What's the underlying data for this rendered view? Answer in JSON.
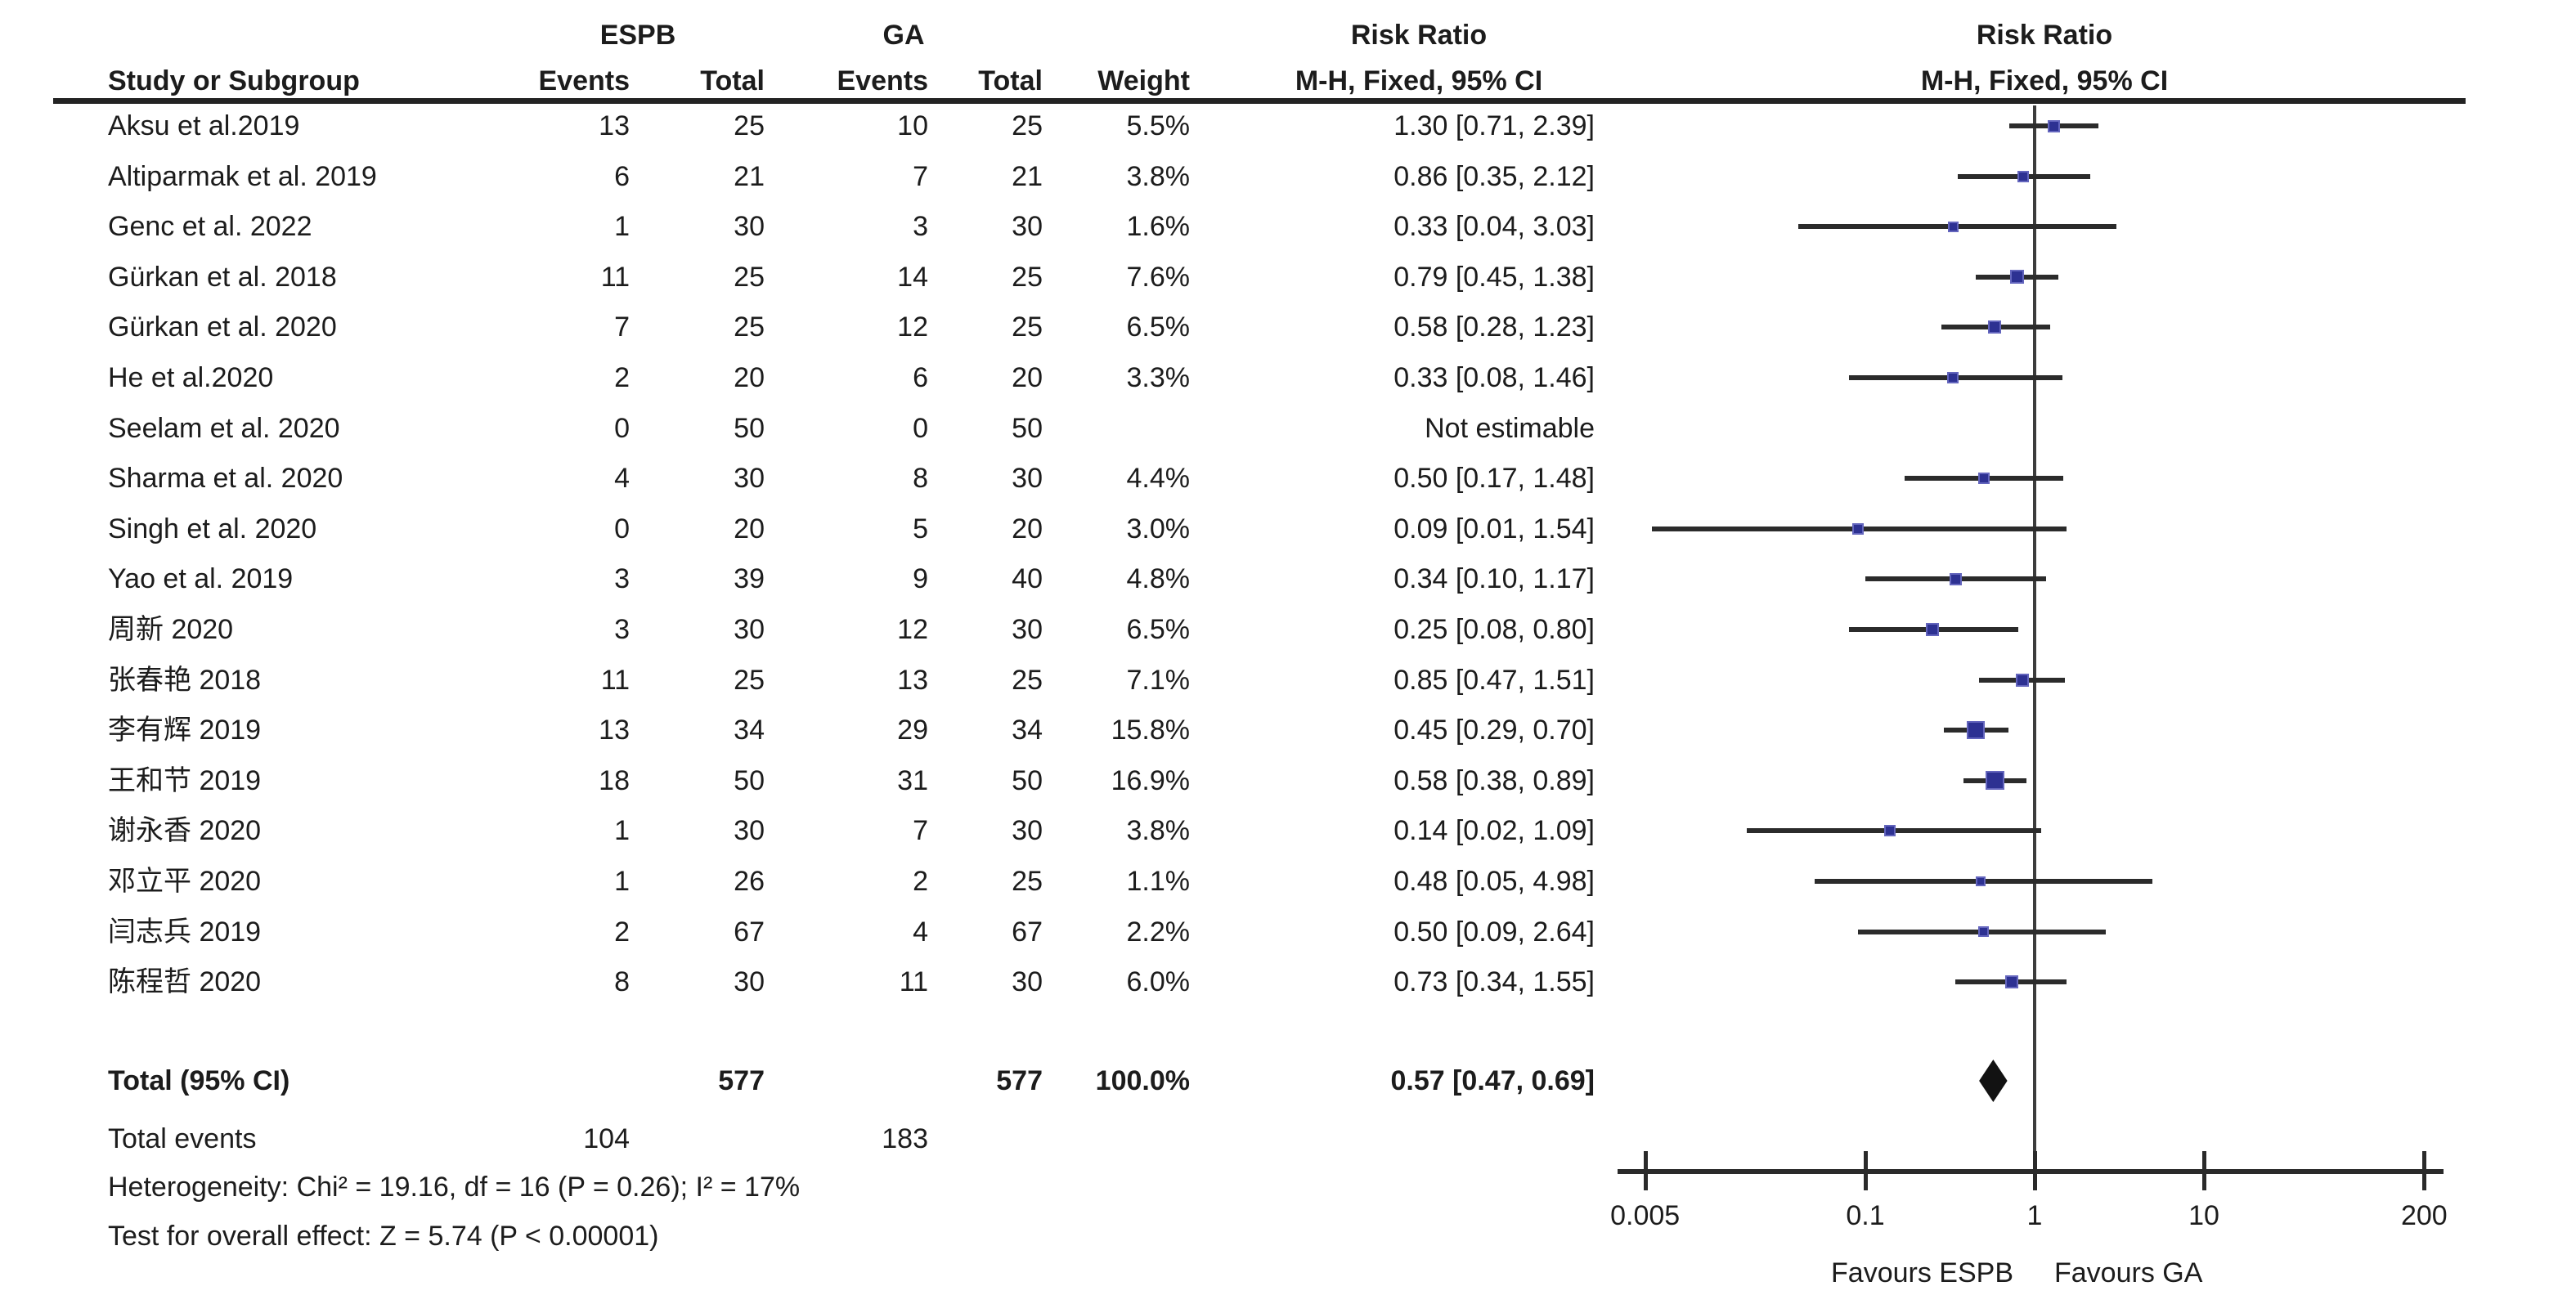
{
  "figure_type": "forest-plot",
  "colors": {
    "background": "#ffffff",
    "text": "#1c1c1c",
    "rule": "#232323",
    "ci_line": "#2b2b2b",
    "vertical_line": "#3c3c3c",
    "axis": "#2a2a2a",
    "marker_blue": "#2d3192",
    "marker_border": "#6365bd",
    "diamond": "#121212"
  },
  "headers": {
    "group_experimental": "ESPB",
    "group_control": "GA",
    "risk_ratio_text_col": "Risk Ratio",
    "risk_ratio_plot_col": "Risk Ratio",
    "study": "Study or Subgroup",
    "events1": "Events",
    "total1": "Total",
    "events2": "Events",
    "total2": "Total",
    "weight": "Weight",
    "mh_text_col": "M-H, Fixed, 95% CI",
    "mh_plot_col": "M-H, Fixed, 95% CI"
  },
  "chart_data": {
    "type": "forest",
    "effect_measure": "Risk Ratio",
    "method": "M-H, Fixed, 95% CI",
    "groups": {
      "experimental": "ESPB",
      "control": "GA"
    },
    "x_axis": {
      "scale": "log",
      "ticks": [
        0.005,
        0.1,
        1,
        10,
        200
      ],
      "tick_labels": [
        "0.005",
        "0.1",
        "1",
        "10",
        "200"
      ],
      "favours_left": "Favours ESPB",
      "favours_right": "Favours GA"
    },
    "studies": [
      {
        "name": "Aksu et al.2019",
        "e1": "13",
        "t1": "25",
        "e2": "10",
        "t2": "25",
        "weight": "5.5%",
        "w": 5.5,
        "rr_text": "1.30 [0.71, 2.39]",
        "rr": 1.3,
        "lo": 0.71,
        "hi": 2.39,
        "estimable": true
      },
      {
        "name": "Altiparmak et al. 2019",
        "e1": "6",
        "t1": "21",
        "e2": "7",
        "t2": "21",
        "weight": "3.8%",
        "w": 3.8,
        "rr_text": "0.86 [0.35, 2.12]",
        "rr": 0.86,
        "lo": 0.35,
        "hi": 2.12,
        "estimable": true
      },
      {
        "name": "Genc et al. 2022",
        "e1": "1",
        "t1": "30",
        "e2": "3",
        "t2": "30",
        "weight": "1.6%",
        "w": 1.6,
        "rr_text": "0.33 [0.04, 3.03]",
        "rr": 0.33,
        "lo": 0.04,
        "hi": 3.03,
        "estimable": true
      },
      {
        "name": "Gürkan et al. 2018",
        "e1": "11",
        "t1": "25",
        "e2": "14",
        "t2": "25",
        "weight": "7.6%",
        "w": 7.6,
        "rr_text": "0.79 [0.45, 1.38]",
        "rr": 0.79,
        "lo": 0.45,
        "hi": 1.38,
        "estimable": true
      },
      {
        "name": "Gürkan et al. 2020",
        "e1": "7",
        "t1": "25",
        "e2": "12",
        "t2": "25",
        "weight": "6.5%",
        "w": 6.5,
        "rr_text": "0.58 [0.28, 1.23]",
        "rr": 0.58,
        "lo": 0.28,
        "hi": 1.23,
        "estimable": true
      },
      {
        "name": "He et al.2020",
        "e1": "2",
        "t1": "20",
        "e2": "6",
        "t2": "20",
        "weight": "3.3%",
        "w": 3.3,
        "rr_text": "0.33 [0.08, 1.46]",
        "rr": 0.33,
        "lo": 0.08,
        "hi": 1.46,
        "estimable": true
      },
      {
        "name": "Seelam et al. 2020",
        "e1": "0",
        "t1": "50",
        "e2": "0",
        "t2": "50",
        "weight": "",
        "w": 0,
        "rr_text": "Not estimable",
        "rr": null,
        "lo": null,
        "hi": null,
        "estimable": false
      },
      {
        "name": "Sharma et al. 2020",
        "e1": "4",
        "t1": "30",
        "e2": "8",
        "t2": "30",
        "weight": "4.4%",
        "w": 4.4,
        "rr_text": "0.50 [0.17, 1.48]",
        "rr": 0.5,
        "lo": 0.17,
        "hi": 1.48,
        "estimable": true
      },
      {
        "name": "Singh et al. 2020",
        "e1": "0",
        "t1": "20",
        "e2": "5",
        "t2": "20",
        "weight": "3.0%",
        "w": 3.0,
        "rr_text": "0.09 [0.01, 1.54]",
        "rr": 0.09,
        "lo": 0.01,
        "hi": 1.54,
        "plot_lo": 0.0055,
        "estimable": true
      },
      {
        "name": "Yao et al. 2019",
        "e1": "3",
        "t1": "39",
        "e2": "9",
        "t2": "40",
        "weight": "4.8%",
        "w": 4.8,
        "rr_text": "0.34 [0.10, 1.17]",
        "rr": 0.34,
        "lo": 0.1,
        "hi": 1.17,
        "estimable": true
      },
      {
        "name": "周新 2020",
        "e1": "3",
        "t1": "30",
        "e2": "12",
        "t2": "30",
        "weight": "6.5%",
        "w": 6.5,
        "rr_text": "0.25 [0.08, 0.80]",
        "rr": 0.25,
        "lo": 0.08,
        "hi": 0.8,
        "estimable": true
      },
      {
        "name": "张春艳 2018",
        "e1": "11",
        "t1": "25",
        "e2": "13",
        "t2": "25",
        "weight": "7.1%",
        "w": 7.1,
        "rr_text": "0.85 [0.47, 1.51]",
        "rr": 0.85,
        "lo": 0.47,
        "hi": 1.51,
        "estimable": true
      },
      {
        "name": "李有辉 2019",
        "e1": "13",
        "t1": "34",
        "e2": "29",
        "t2": "34",
        "weight": "15.8%",
        "w": 15.8,
        "rr_text": "0.45 [0.29, 0.70]",
        "rr": 0.45,
        "lo": 0.29,
        "hi": 0.7,
        "estimable": true
      },
      {
        "name": "王和节 2019",
        "e1": "18",
        "t1": "50",
        "e2": "31",
        "t2": "50",
        "weight": "16.9%",
        "w": 16.9,
        "rr_text": "0.58 [0.38, 0.89]",
        "rr": 0.58,
        "lo": 0.38,
        "hi": 0.89,
        "estimable": true
      },
      {
        "name": "谢永香 2020",
        "e1": "1",
        "t1": "30",
        "e2": "7",
        "t2": "30",
        "weight": "3.8%",
        "w": 3.8,
        "rr_text": "0.14 [0.02, 1.09]",
        "rr": 0.14,
        "lo": 0.02,
        "hi": 1.09,
        "estimable": true
      },
      {
        "name": "邓立平 2020",
        "e1": "1",
        "t1": "26",
        "e2": "2",
        "t2": "25",
        "weight": "1.1%",
        "w": 1.1,
        "rr_text": "0.48 [0.05, 4.98]",
        "rr": 0.48,
        "lo": 0.05,
        "hi": 4.98,
        "estimable": true
      },
      {
        "name": "闫志兵 2019",
        "e1": "2",
        "t1": "67",
        "e2": "4",
        "t2": "67",
        "weight": "2.2%",
        "w": 2.2,
        "rr_text": "0.50 [0.09, 2.64]",
        "rr": 0.5,
        "lo": 0.09,
        "hi": 2.64,
        "estimable": true
      },
      {
        "name": "陈程哲 2020",
        "e1": "8",
        "t1": "30",
        "e2": "11",
        "t2": "30",
        "weight": "6.0%",
        "w": 6.0,
        "rr_text": "0.73 [0.34, 1.55]",
        "rr": 0.73,
        "lo": 0.34,
        "hi": 1.55,
        "estimable": true
      }
    ],
    "total": {
      "label": "Total (95% CI)",
      "t1": "577",
      "t2": "577",
      "weight": "100.0%",
      "rr_text": "0.57 [0.47, 0.69]",
      "rr": 0.57,
      "lo": 0.47,
      "hi": 0.69
    },
    "total_events": {
      "label": "Total events",
      "e1": "104",
      "e2": "183"
    },
    "heterogeneity": "Heterogeneity: Chi² = 19.16, df = 16 (P = 0.26); I² = 17%",
    "overall_effect": "Test for overall effect: Z = 5.74 (P < 0.00001)"
  }
}
